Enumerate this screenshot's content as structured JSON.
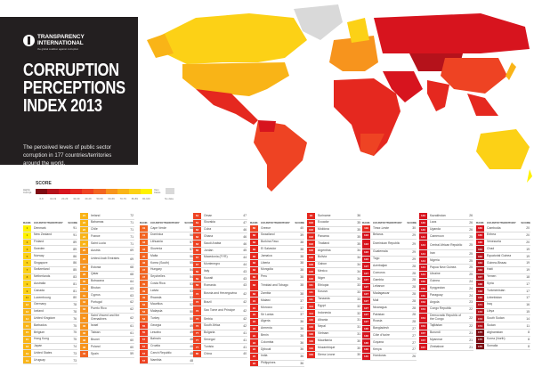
{
  "header": {
    "org_line1": "TRANSPARENCY",
    "org_line2": "INTERNATIONAL",
    "org_tagline": "the global coalition against corruption",
    "title_line1": "CORRUPTION",
    "title_line2": "PERCEPTIONS",
    "title_line3": "INDEX 2013",
    "subtitle": "The perceived levels of public sector corruption in 177 countries/territories around the world."
  },
  "legend": {
    "title": "SCORE",
    "low_label": "Highly Corrupt",
    "high_label": "Very Clean",
    "ranges": [
      "0-9",
      "10-19",
      "20-29",
      "30-39",
      "40-49",
      "50-59",
      "60-69",
      "70-79",
      "80-89",
      "90-100"
    ],
    "colors": [
      "#7d0b12",
      "#b5121b",
      "#d7141e",
      "#e5281f",
      "#ee4323",
      "#f26522",
      "#f7941d",
      "#f9b417",
      "#fcd116",
      "#fff200"
    ],
    "no_data_label": "No data",
    "no_data_color": "#d9d9d9"
  },
  "table": {
    "headers": {
      "rank": "RANK",
      "country": "COUNTRY/TERRITORY",
      "score": "SCORE"
    },
    "columns": [
      {
        "header": true,
        "rows": [
          [
            "1",
            "Denmark",
            "91"
          ],
          [
            "1",
            "New Zealand",
            "91"
          ],
          [
            "3",
            "Finland",
            "89"
          ],
          [
            "3",
            "Sweden",
            "89"
          ],
          [
            "5",
            "Norway",
            "86"
          ],
          [
            "5",
            "Singapore",
            "86"
          ],
          [
            "7",
            "Switzerland",
            "85"
          ],
          [
            "8",
            "Netherlands",
            "83"
          ],
          [
            "9",
            "Australia",
            "81"
          ],
          [
            "9",
            "Canada",
            "81"
          ],
          [
            "11",
            "Luxembourg",
            "80"
          ],
          [
            "12",
            "Germany",
            "78"
          ],
          [
            "12",
            "Iceland",
            "78"
          ],
          [
            "14",
            "United Kingdom",
            "76"
          ],
          [
            "15",
            "Barbados",
            "75"
          ],
          [
            "15",
            "Belgium",
            "75"
          ],
          [
            "15",
            "Hong Kong",
            "75"
          ],
          [
            "18",
            "Japan",
            "74"
          ],
          [
            "19",
            "United States",
            "73"
          ],
          [
            "19",
            "Uruguay",
            "73"
          ]
        ]
      },
      {
        "header": false,
        "rows": [
          [
            "21",
            "Ireland",
            "72"
          ],
          [
            "22",
            "Bahamas",
            "71"
          ],
          [
            "22",
            "Chile",
            "71"
          ],
          [
            "22",
            "France",
            "71"
          ],
          [
            "22",
            "Saint Lucia",
            "71"
          ],
          [
            "26",
            "Austria",
            "69"
          ],
          [
            "26",
            "United Arab Emirates",
            "69"
          ],
          [
            "28",
            "Estonia",
            "68"
          ],
          [
            "28",
            "Qatar",
            "68"
          ],
          [
            "30",
            "Botswana",
            "64"
          ],
          [
            "31",
            "Bhutan",
            "63"
          ],
          [
            "31",
            "Cyprus",
            "63"
          ],
          [
            "33",
            "Portugal",
            "62"
          ],
          [
            "33",
            "Puerto Rico",
            "62"
          ],
          [
            "33",
            "Saint Vincent and the Grenadines",
            "62"
          ],
          [
            "36",
            "Israel",
            "61"
          ],
          [
            "36",
            "Taiwan",
            "61"
          ],
          [
            "38",
            "Brunei",
            "60"
          ],
          [
            "38",
            "Poland",
            "60"
          ],
          [
            "40",
            "Spain",
            "59"
          ]
        ]
      },
      {
        "header": true,
        "rows": [
          [
            "41",
            "Cape Verde",
            "58"
          ],
          [
            "41",
            "Dominica",
            "58"
          ],
          [
            "43",
            "Lithuania",
            "57"
          ],
          [
            "43",
            "Slovenia",
            "57"
          ],
          [
            "45",
            "Malta",
            "56"
          ],
          [
            "46",
            "Korea (South)",
            "55"
          ],
          [
            "47",
            "Hungary",
            "54"
          ],
          [
            "47",
            "Seychelles",
            "54"
          ],
          [
            "49",
            "Costa Rica",
            "53"
          ],
          [
            "49",
            "Latvia",
            "53"
          ],
          [
            "49",
            "Rwanda",
            "53"
          ],
          [
            "52",
            "Mauritius",
            "52"
          ],
          [
            "53",
            "Malaysia",
            "50"
          ],
          [
            "53",
            "Turkey",
            "50"
          ],
          [
            "55",
            "Georgia",
            "49"
          ],
          [
            "55",
            "Lesotho",
            "49"
          ],
          [
            "57",
            "Bahrain",
            "48"
          ],
          [
            "57",
            "Croatia",
            "48"
          ],
          [
            "57",
            "Czech Republic",
            "48"
          ],
          [
            "57",
            "Namibia",
            "48"
          ]
        ]
      },
      {
        "header": false,
        "rows": [
          [
            "61",
            "Oman",
            "47"
          ],
          [
            "61",
            "Slovakia",
            "47"
          ],
          [
            "63",
            "Cuba",
            "46"
          ],
          [
            "63",
            "Ghana",
            "46"
          ],
          [
            "63",
            "Saudi Arabia",
            "46"
          ],
          [
            "66",
            "Jordan",
            "45"
          ],
          [
            "67",
            "Macedonia (FYR)",
            "44"
          ],
          [
            "67",
            "Montenegro",
            "44"
          ],
          [
            "69",
            "Italy",
            "43"
          ],
          [
            "69",
            "Kuwait",
            "43"
          ],
          [
            "69",
            "Romania",
            "43"
          ],
          [
            "72",
            "Bosnia and Herzegovina",
            "42"
          ],
          [
            "72",
            "Brazil",
            "42"
          ],
          [
            "72",
            "Sao Tome and Principe",
            "42"
          ],
          [
            "72",
            "Serbia",
            "42"
          ],
          [
            "72",
            "South Africa",
            "42"
          ],
          [
            "77",
            "Bulgaria",
            "41"
          ],
          [
            "77",
            "Senegal",
            "41"
          ],
          [
            "77",
            "Tunisia",
            "41"
          ],
          [
            "80",
            "China",
            "40"
          ]
        ]
      },
      {
        "header": true,
        "rows": [
          [
            "80",
            "Greece",
            "40"
          ],
          [
            "82",
            "Swaziland",
            "39"
          ],
          [
            "83",
            "Burkina Faso",
            "38"
          ],
          [
            "83",
            "El Salvador",
            "38"
          ],
          [
            "83",
            "Jamaica",
            "38"
          ],
          [
            "83",
            "Liberia",
            "38"
          ],
          [
            "83",
            "Mongolia",
            "38"
          ],
          [
            "83",
            "Peru",
            "38"
          ],
          [
            "83",
            "Trinidad and Tobago",
            "38"
          ],
          [
            "83",
            "Zambia",
            "38"
          ],
          [
            "91",
            "Malawi",
            "37"
          ],
          [
            "91",
            "Morocco",
            "37"
          ],
          [
            "91",
            "Sri Lanka",
            "37"
          ],
          [
            "94",
            "Algeria",
            "36"
          ],
          [
            "94",
            "Armenia",
            "36"
          ],
          [
            "94",
            "Benin",
            "36"
          ],
          [
            "94",
            "Colombia",
            "36"
          ],
          [
            "94",
            "Djibouti",
            "36"
          ],
          [
            "94",
            "India",
            "36"
          ],
          [
            "94",
            "Philippines",
            "36"
          ]
        ]
      },
      {
        "header": false,
        "rows": [
          [
            "94",
            "Suriname",
            "36"
          ],
          [
            "102",
            "Ecuador",
            "35"
          ],
          [
            "102",
            "Moldova",
            "35"
          ],
          [
            "102",
            "Panama",
            "35"
          ],
          [
            "102",
            "Thailand",
            "35"
          ],
          [
            "106",
            "Argentina",
            "34"
          ],
          [
            "106",
            "Bolivia",
            "34"
          ],
          [
            "106",
            "Gabon",
            "34"
          ],
          [
            "106",
            "Mexico",
            "34"
          ],
          [
            "106",
            "Niger",
            "34"
          ],
          [
            "111",
            "Ethiopia",
            "33"
          ],
          [
            "111",
            "Kosovo",
            "33"
          ],
          [
            "111",
            "Tanzania",
            "33"
          ],
          [
            "114",
            "Egypt",
            "32"
          ],
          [
            "114",
            "Indonesia",
            "32"
          ],
          [
            "116",
            "Albania",
            "31"
          ],
          [
            "116",
            "Nepal",
            "31"
          ],
          [
            "116",
            "Vietnam",
            "31"
          ],
          [
            "119",
            "Mauritania",
            "30"
          ],
          [
            "119",
            "Mozambique",
            "30"
          ],
          [
            "119",
            "Sierra Leone",
            "30"
          ]
        ]
      },
      {
        "header": true,
        "rows": [
          [
            "119",
            "Timor-Leste",
            "30"
          ],
          [
            "123",
            "Belarus",
            "29"
          ],
          [
            "123",
            "Dominican Republic",
            "29"
          ],
          [
            "123",
            "Guatemala",
            "29"
          ],
          [
            "123",
            "Togo",
            "29"
          ],
          [
            "127",
            "Azerbaijan",
            "28"
          ],
          [
            "127",
            "Comoros",
            "28"
          ],
          [
            "127",
            "Gambia",
            "28"
          ],
          [
            "127",
            "Lebanon",
            "28"
          ],
          [
            "127",
            "Madagascar",
            "28"
          ],
          [
            "127",
            "Mali",
            "28"
          ],
          [
            "127",
            "Nicaragua",
            "28"
          ],
          [
            "127",
            "Pakistan",
            "28"
          ],
          [
            "127",
            "Russia",
            "28"
          ],
          [
            "136",
            "Bangladesh",
            "27"
          ],
          [
            "136",
            "Côte d'Ivoire",
            "27"
          ],
          [
            "136",
            "Guyana",
            "27"
          ],
          [
            "136",
            "Kenya",
            "27"
          ],
          [
            "140",
            "Honduras",
            "26"
          ]
        ]
      },
      {
        "header": false,
        "rows": [
          [
            "140",
            "Kazakhstan",
            "26"
          ],
          [
            "140",
            "Laos",
            "26"
          ],
          [
            "140",
            "Uganda",
            "26"
          ],
          [
            "144",
            "Cameroon",
            "25"
          ],
          [
            "144",
            "Central African Republic",
            "25"
          ],
          [
            "144",
            "Iran",
            "25"
          ],
          [
            "144",
            "Nigeria",
            "25"
          ],
          [
            "144",
            "Papua New Guinea",
            "25"
          ],
          [
            "144",
            "Ukraine",
            "25"
          ],
          [
            "150",
            "Guinea",
            "24"
          ],
          [
            "150",
            "Kyrgyzstan",
            "24"
          ],
          [
            "150",
            "Paraguay",
            "24"
          ],
          [
            "153",
            "Angola",
            "23"
          ],
          [
            "154",
            "Congo Republic",
            "22"
          ],
          [
            "154",
            "Democratic Republic of the Congo",
            "22"
          ],
          [
            "154",
            "Tajikistan",
            "22"
          ],
          [
            "157",
            "Burundi",
            "21"
          ],
          [
            "157",
            "Myanmar",
            "21"
          ],
          [
            "157",
            "Zimbabwe",
            "21"
          ]
        ]
      },
      {
        "header": true,
        "rows": [
          [
            "160",
            "Cambodia",
            "20"
          ],
          [
            "160",
            "Eritrea",
            "20"
          ],
          [
            "160",
            "Venezuela",
            "20"
          ],
          [
            "163",
            "Chad",
            "19"
          ],
          [
            "163",
            "Equatorial Guinea",
            "19"
          ],
          [
            "163",
            "Guinea-Bissau",
            "19"
          ],
          [
            "163",
            "Haiti",
            "19"
          ],
          [
            "167",
            "Yemen",
            "18"
          ],
          [
            "168",
            "Syria",
            "17"
          ],
          [
            "168",
            "Turkmenistan",
            "17"
          ],
          [
            "168",
            "Uzbekistan",
            "17"
          ],
          [
            "171",
            "Iraq",
            "16"
          ],
          [
            "172",
            "Libya",
            "15"
          ],
          [
            "173",
            "South Sudan",
            "14"
          ],
          [
            "174",
            "Sudan",
            "11"
          ],
          [
            "175",
            "Afghanistan",
            "8"
          ],
          [
            "175",
            "Korea (North)",
            "8"
          ],
          [
            "175",
            "Somalia",
            "8"
          ]
        ]
      }
    ]
  }
}
